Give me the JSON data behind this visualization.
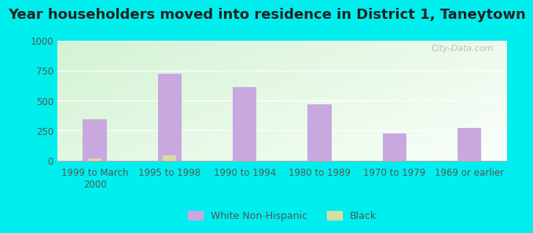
{
  "title": "Year householders moved into residence in District 1, Taneytown",
  "categories": [
    "1999 to March\n2000",
    "1995 to 1998",
    "1990 to 1994",
    "1980 to 1989",
    "1970 to 1979",
    "1969 or earlier"
  ],
  "white_values": [
    340,
    720,
    610,
    470,
    225,
    270
  ],
  "black_values": [
    18,
    45,
    0,
    0,
    0,
    0
  ],
  "white_color": "#c9a8e0",
  "black_color": "#d4dfa0",
  "background_color": "#00eeee",
  "ylim": [
    0,
    1000
  ],
  "yticks": [
    0,
    250,
    500,
    750,
    1000
  ],
  "bar_width": 0.32,
  "legend_labels": [
    "White Non-Hispanic",
    "Black"
  ],
  "watermark": "City-Data.com",
  "title_fontsize": 13,
  "tick_fontsize": 8.5
}
